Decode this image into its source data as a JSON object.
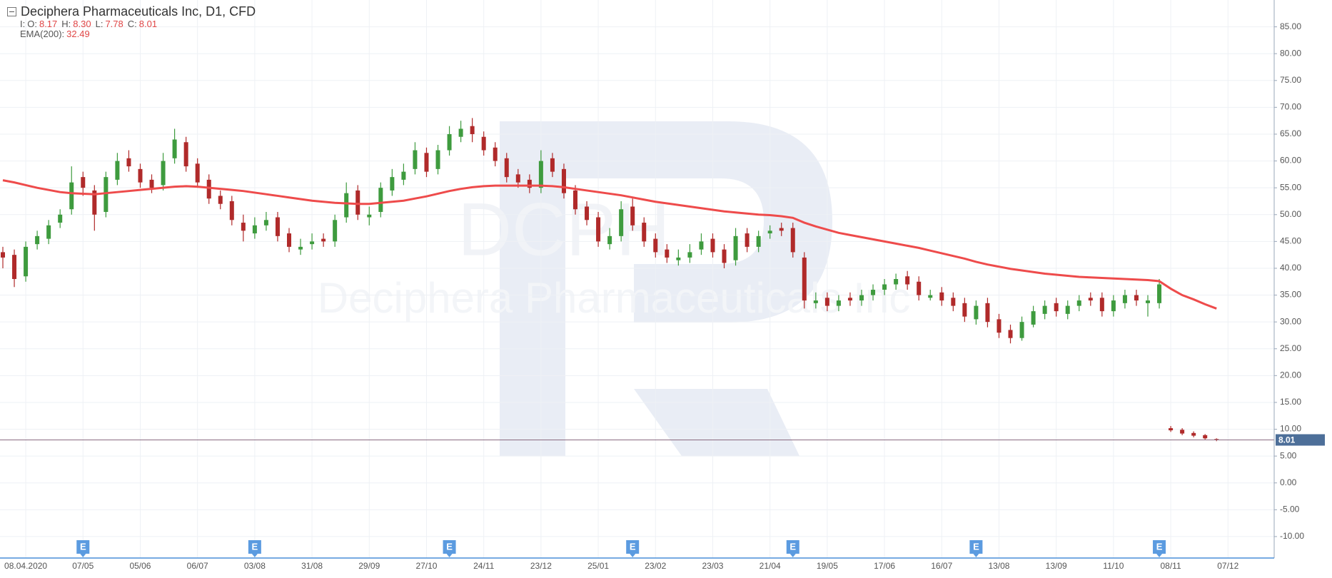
{
  "header": {
    "title": "Deciphera Pharmaceuticals Inc,  D1,  CFD",
    "ohlc": {
      "prefix": "I:",
      "items": [
        {
          "label": "O:",
          "value": "8.17"
        },
        {
          "label": "H:",
          "value": "8.30"
        },
        {
          "label": "L:",
          "value": "7.78"
        },
        {
          "label": "C:",
          "value": "8.01"
        }
      ]
    },
    "indicator": {
      "label": "EMA(200):",
      "value": "32.49"
    }
  },
  "watermark": {
    "ticker": "DCPH",
    "name": "Deciphera Pharmaceuticals Inc"
  },
  "chart_data": {
    "type": "candlestick",
    "categories": [
      null,
      null,
      "08.04.2020",
      null,
      null,
      null,
      null,
      "07/05",
      null,
      null,
      null,
      null,
      "05/06",
      null,
      null,
      null,
      null,
      "06/07",
      null,
      null,
      null,
      null,
      "03/08",
      null,
      null,
      null,
      null,
      "31/08",
      null,
      null,
      null,
      null,
      "29/09",
      null,
      null,
      null,
      null,
      "27/10",
      null,
      null,
      null,
      null,
      "24/11",
      null,
      null,
      null,
      null,
      "23/12",
      null,
      null,
      null,
      null,
      "25/01",
      null,
      null,
      null,
      null,
      "23/02",
      null,
      null,
      null,
      null,
      "23/03",
      null,
      null,
      null,
      null,
      "21/04",
      null,
      null,
      null,
      null,
      "19/05",
      null,
      null,
      null,
      null,
      "17/06",
      null,
      null,
      null,
      null,
      "16/07",
      null,
      null,
      null,
      null,
      "13/08",
      null,
      null,
      null,
      null,
      "13/09",
      null,
      null,
      null,
      null,
      "11/10",
      null,
      null,
      null,
      null,
      "08/11",
      null,
      null,
      null,
      null,
      "07/12"
    ],
    "events": [
      null,
      null,
      null,
      null,
      null,
      null,
      null,
      "E",
      null,
      null,
      null,
      null,
      null,
      null,
      null,
      null,
      null,
      null,
      null,
      null,
      null,
      null,
      "E",
      null,
      null,
      null,
      null,
      null,
      null,
      null,
      null,
      null,
      null,
      null,
      null,
      null,
      null,
      null,
      null,
      "E",
      null,
      null,
      null,
      null,
      null,
      null,
      null,
      null,
      null,
      null,
      null,
      null,
      null,
      null,
      null,
      "E",
      null,
      null,
      null,
      null,
      null,
      null,
      null,
      null,
      null,
      null,
      null,
      null,
      null,
      "E",
      null,
      null,
      null,
      null,
      null,
      null,
      null,
      null,
      null,
      null,
      null,
      null,
      null,
      null,
      null,
      "E",
      null,
      null,
      null,
      null,
      null,
      null,
      null,
      null,
      null,
      null,
      null,
      null,
      null,
      null,
      null,
      "E",
      null,
      null,
      null,
      null,
      null,
      null
    ],
    "open": [
      43,
      42.5,
      38.5,
      44.5,
      45.5,
      48.5,
      51,
      57,
      54.5,
      50.5,
      56.5,
      60.5,
      58.5,
      56.5,
      55.5,
      60.5,
      63.5,
      59.5,
      56.5,
      53.5,
      52.5,
      48.5,
      46.5,
      48,
      49.5,
      46.5,
      43.5,
      44.5,
      45.5,
      45,
      49.5,
      54.5,
      49.5,
      50.5,
      54.5,
      56.5,
      58.5,
      61.5,
      58.5,
      62,
      64.5,
      66.5,
      64.5,
      62.5,
      60.5,
      57.5,
      56.5,
      55,
      60.5,
      58.5,
      54.5,
      51.5,
      49.5,
      44.5,
      46,
      51.5,
      48.5,
      45.5,
      43.5,
      41.5,
      42,
      43.5,
      45.5,
      43.5,
      41.5,
      46.5,
      44,
      46.5,
      47.5,
      47.5,
      42,
      33.5,
      34.5,
      33,
      34.5,
      34,
      35,
      36,
      37,
      38.5,
      37.5,
      34.5,
      35.5,
      34.5,
      33.5,
      30.5,
      33.5,
      30.5,
      28.5,
      27,
      29.5,
      31.5,
      33.5,
      31.5,
      33,
      34.5,
      34.5,
      32,
      33.5,
      35,
      33.5,
      33.5,
      10.2,
      9.9,
      9.3,
      8.9,
      8.17,
      null
    ],
    "high": [
      44,
      43.5,
      45,
      47,
      49,
      51,
      59,
      58,
      55.5,
      58,
      61.5,
      62,
      59.5,
      57.5,
      61.5,
      66,
      64.5,
      60.5,
      57.5,
      54.5,
      53.5,
      50,
      49.5,
      50.5,
      50.5,
      47.5,
      45.5,
      46.5,
      46.5,
      50,
      56,
      55.5,
      51.5,
      56,
      58.5,
      59.5,
      63.5,
      62.5,
      63,
      66.5,
      67.5,
      68,
      65.5,
      63.5,
      61.5,
      58.5,
      57.5,
      62,
      61.5,
      59.5,
      55.5,
      52.5,
      50.5,
      47.5,
      52.5,
      53,
      49.5,
      46.5,
      44.5,
      43.5,
      44.5,
      46.5,
      46.5,
      44.5,
      47.5,
      47.5,
      47,
      48,
      48.5,
      48.5,
      43,
      35.5,
      35.5,
      35,
      35.5,
      36,
      37,
      38,
      39,
      39.5,
      38.5,
      36,
      36.5,
      35.5,
      34.5,
      34,
      34.5,
      31.5,
      29.5,
      31,
      33,
      34,
      34.5,
      34,
      35,
      35.5,
      35.5,
      35,
      36,
      36,
      35,
      38,
      10.6,
      10.2,
      9.6,
      9.1,
      8.3,
      null
    ],
    "low": [
      40,
      36.5,
      37.5,
      43.5,
      44.5,
      47.5,
      50,
      53.5,
      47,
      49.5,
      55.5,
      58,
      55,
      54,
      54.5,
      59.5,
      58,
      55,
      52,
      51,
      48,
      45,
      45.5,
      47,
      45,
      43,
      42.5,
      43.5,
      44,
      44,
      48.5,
      49,
      48,
      49.5,
      53.5,
      55.5,
      57.5,
      57,
      57.5,
      61,
      63.5,
      63.5,
      61,
      59,
      56,
      55,
      54,
      54,
      57,
      53,
      50,
      48,
      44,
      43.5,
      45,
      47,
      44,
      42,
      41,
      40.5,
      41,
      42.5,
      42,
      40,
      40.5,
      43,
      43,
      45.5,
      46,
      42,
      32.5,
      32.5,
      32,
      32,
      33,
      33,
      34,
      35,
      36,
      36,
      34,
      34,
      33,
      32,
      30,
      29.5,
      29,
      27,
      26,
      26.5,
      29,
      30.5,
      31,
      30.5,
      32,
      33,
      31,
      31,
      32.5,
      33,
      31,
      32.5,
      9.5,
      8.9,
      8.5,
      8.1,
      7.78,
      null
    ],
    "close": [
      42,
      38,
      44,
      46,
      48,
      50,
      56,
      55,
      50,
      57,
      60,
      59,
      56,
      55,
      60,
      64,
      59,
      56,
      53,
      52,
      49,
      47,
      48,
      49,
      46,
      44,
      44,
      45,
      45,
      49,
      54,
      50,
      50,
      55,
      57,
      58,
      62,
      58,
      62,
      65,
      66,
      65,
      62,
      60,
      57,
      56,
      55,
      60,
      58,
      54,
      51,
      49,
      45,
      46,
      51,
      48,
      45,
      43,
      42,
      42,
      43,
      45,
      43,
      41,
      46,
      44,
      46,
      47,
      47,
      43,
      34,
      34,
      33,
      34,
      34,
      35,
      36,
      37,
      38,
      37,
      35,
      35,
      34,
      33,
      31,
      33,
      30,
      28,
      27,
      30,
      32,
      33,
      32,
      33,
      34,
      34,
      32,
      34,
      35,
      34,
      34,
      37,
      9.8,
      9.2,
      8.8,
      8.3,
      8.01,
      null
    ],
    "up_color": "#3e9b3e",
    "down_color": "#b02a2a",
    "ema": {
      "name": "EMA(200)",
      "color": "#ee4b4b",
      "values": [
        56.4,
        56,
        55.5,
        55,
        54.6,
        54.2,
        54,
        53.9,
        53.8,
        54,
        54.2,
        54.4,
        54.6,
        54.8,
        55,
        55.2,
        55.3,
        55.2,
        55,
        54.8,
        54.6,
        54.4,
        54.1,
        53.8,
        53.5,
        53.2,
        52.9,
        52.6,
        52.4,
        52.2,
        52.1,
        52,
        52,
        52.2,
        52.4,
        52.6,
        53,
        53.4,
        53.9,
        54.4,
        54.8,
        55.1,
        55.3,
        55.4,
        55.4,
        55.4,
        55.4,
        55.4,
        55.3,
        55.1,
        54.8,
        54.5,
        54.2,
        53.9,
        53.6,
        53.2,
        52.8,
        52.4,
        52.1,
        51.8,
        51.5,
        51.2,
        50.9,
        50.6,
        50.4,
        50.2,
        50,
        49.9,
        49.7,
        49.4,
        48.5,
        47.8,
        47.2,
        46.6,
        46.2,
        45.8,
        45.4,
        45,
        44.6,
        44.2,
        43.8,
        43.3,
        42.8,
        42.3,
        41.8,
        41.2,
        40.7,
        40.3,
        39.9,
        39.6,
        39.3,
        39,
        38.8,
        38.6,
        38.4,
        38.3,
        38.2,
        38.1,
        38,
        37.9,
        37.8,
        37.6,
        36.2,
        35,
        34.2,
        33.3,
        32.49,
        null
      ]
    },
    "last_price": {
      "value": 8.01,
      "label": "8.01"
    },
    "ylim": [
      -14,
      90
    ],
    "yticks": [
      {
        "value": -10,
        "label": "-10.00"
      },
      {
        "value": -5,
        "label": "-5.00"
      },
      {
        "value": 0,
        "label": "0.00"
      },
      {
        "value": 5,
        "label": "5.00"
      },
      {
        "value": 10,
        "label": "10.00"
      },
      {
        "value": 15,
        "label": "15.00"
      },
      {
        "value": 20,
        "label": "20.00"
      },
      {
        "value": 25,
        "label": "25.00"
      },
      {
        "value": 30,
        "label": "30.00"
      },
      {
        "value": 35,
        "label": "35.00"
      },
      {
        "value": 40,
        "label": "40.00"
      },
      {
        "value": 45,
        "label": "45.00"
      },
      {
        "value": 50,
        "label": "50.00"
      },
      {
        "value": 55,
        "label": "55.00"
      },
      {
        "value": 60,
        "label": "60.00"
      },
      {
        "value": 65,
        "label": "65.00"
      },
      {
        "value": 70,
        "label": "70.00"
      },
      {
        "value": 75,
        "label": "75.00"
      },
      {
        "value": 80,
        "label": "80.00"
      },
      {
        "value": 85,
        "label": "85.00"
      }
    ],
    "grid": true
  }
}
